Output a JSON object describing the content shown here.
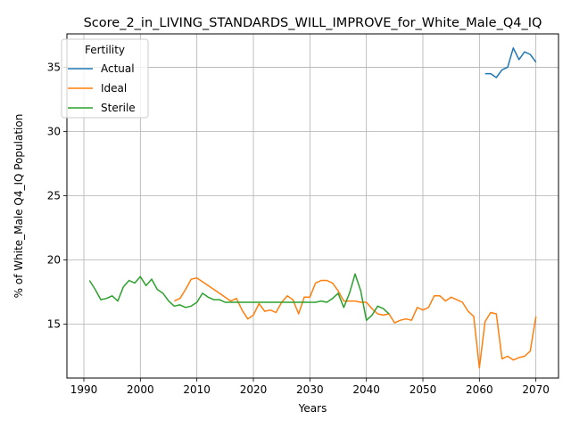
{
  "chart_data": {
    "type": "line",
    "title": "Score_2_in_LIVING_STANDARDS_WILL_IMPROVE_for_White_Male_Q4_IQ",
    "xlabel": "Years",
    "ylabel": "% of White_Male Q4_IQ Population",
    "xlim": [
      1987,
      2074
    ],
    "ylim": [
      10.8,
      37.6
    ],
    "xticks": [
      1990,
      2000,
      2010,
      2020,
      2030,
      2040,
      2050,
      2060,
      2070
    ],
    "yticks": [
      15,
      20,
      25,
      30,
      35
    ],
    "grid": true,
    "legend": {
      "title": "Fertility",
      "position": "upper left"
    },
    "series": [
      {
        "name": "Actual",
        "color": "#1f77b4",
        "x": [
          2061,
          2062,
          2063,
          2064,
          2065,
          2066,
          2067,
          2068,
          2069,
          2070
        ],
        "y": [
          34.5,
          34.5,
          34.2,
          34.8,
          35.0,
          36.5,
          35.6,
          36.2,
          36.0,
          35.4
        ]
      },
      {
        "name": "Ideal",
        "color": "#ff7f0e",
        "x": [
          2006,
          2007,
          2008,
          2009,
          2010,
          2011,
          2012,
          2013,
          2014,
          2015,
          2016,
          2017,
          2018,
          2019,
          2020,
          2021,
          2022,
          2023,
          2024,
          2025,
          2026,
          2027,
          2028,
          2029,
          2030,
          2031,
          2032,
          2033,
          2034,
          2035,
          2036,
          2037,
          2038,
          2039,
          2040,
          2041,
          2042,
          2043,
          2044,
          2045,
          2046,
          2047,
          2048,
          2049,
          2050,
          2051,
          2052,
          2053,
          2054,
          2055,
          2056,
          2057,
          2058,
          2059,
          2060,
          2061,
          2062,
          2063,
          2064,
          2065,
          2066,
          2067,
          2068,
          2069,
          2070
        ],
        "y": [
          16.8,
          17.0,
          17.7,
          18.5,
          18.6,
          18.3,
          18.0,
          17.7,
          17.4,
          17.1,
          16.8,
          17.0,
          16.1,
          15.4,
          15.7,
          16.6,
          16.0,
          16.1,
          15.9,
          16.7,
          17.2,
          16.9,
          15.8,
          17.1,
          17.1,
          18.2,
          18.4,
          18.4,
          18.2,
          17.6,
          16.8,
          16.8,
          16.8,
          16.7,
          16.7,
          16.2,
          15.8,
          15.7,
          15.8,
          15.1,
          15.3,
          15.4,
          15.3,
          16.3,
          16.1,
          16.3,
          17.2,
          17.2,
          16.8,
          17.1,
          16.9,
          16.7,
          16.0,
          15.6,
          11.6,
          15.2,
          15.9,
          15.8,
          12.3,
          12.5,
          12.2,
          12.4,
          12.5,
          12.9,
          15.6
        ]
      },
      {
        "name": "Sterile",
        "color": "#2ca02c",
        "x": [
          1991,
          1992,
          1993,
          1994,
          1995,
          1996,
          1997,
          1998,
          1999,
          2000,
          2001,
          2002,
          2003,
          2004,
          2005,
          2006,
          2007,
          2008,
          2009,
          2010,
          2011,
          2012,
          2013,
          2014,
          2015,
          2016,
          2017,
          2018,
          2019,
          2020,
          2021,
          2022,
          2023,
          2024,
          2025,
          2026,
          2027,
          2028,
          2029,
          2030,
          2031,
          2032,
          2033,
          2034,
          2035,
          2036,
          2037,
          2038,
          2039,
          2040,
          2041,
          2042,
          2043,
          2044
        ],
        "y": [
          18.4,
          17.7,
          16.9,
          17.0,
          17.2,
          16.8,
          17.9,
          18.4,
          18.2,
          18.7,
          18.0,
          18.5,
          17.7,
          17.4,
          16.8,
          16.4,
          16.5,
          16.3,
          16.4,
          16.7,
          17.4,
          17.1,
          16.9,
          16.9,
          16.7,
          16.7,
          16.7,
          16.7,
          16.7,
          16.7,
          16.7,
          16.7,
          16.7,
          16.7,
          16.7,
          16.7,
          16.7,
          16.7,
          16.7,
          16.7,
          16.7,
          16.8,
          16.7,
          17.0,
          17.4,
          16.3,
          17.4,
          18.9,
          17.6,
          15.3,
          15.7,
          16.4,
          16.2,
          15.8
        ]
      }
    ]
  }
}
